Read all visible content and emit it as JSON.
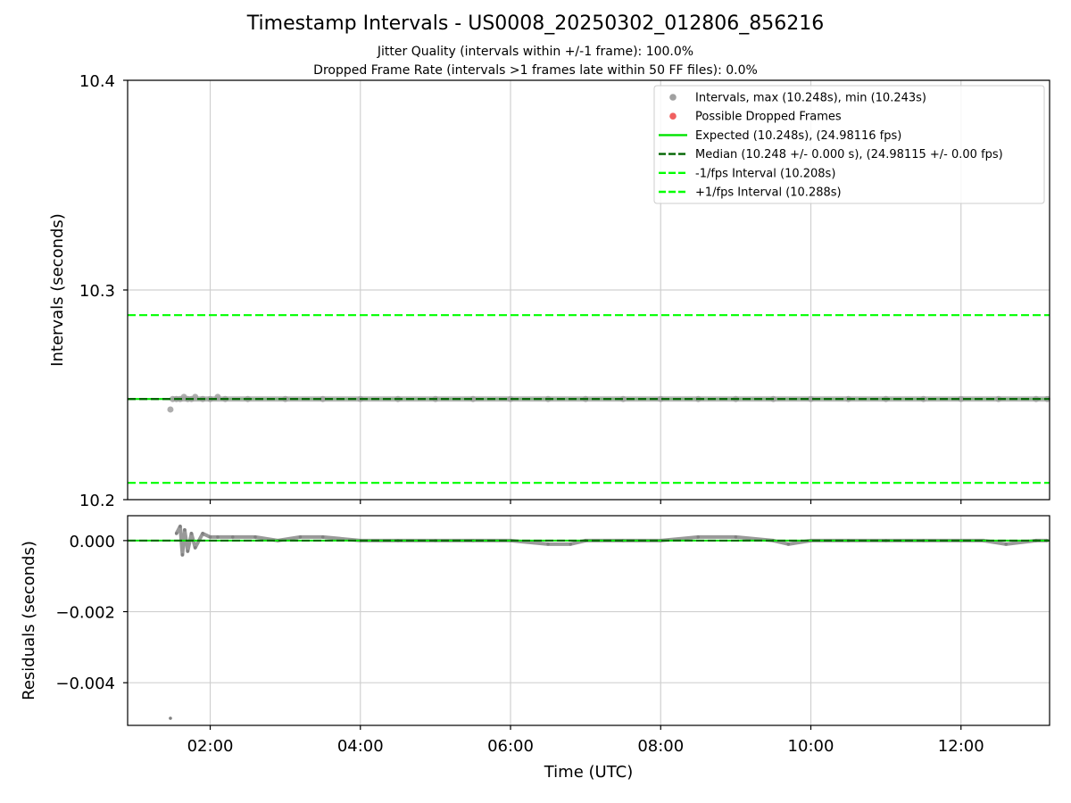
{
  "chart_data": [
    {
      "type": "scatter",
      "title": "Timestamp Intervals - US0008_20250302_012806_856216",
      "subtitle_lines": [
        "Jitter Quality (intervals within +/-1 frame): 100.0%",
        "Dropped Frame Rate (intervals >1 frames late within 50 FF files): 0.0%"
      ],
      "ylabel": "Intervals (seconds)",
      "ylim": [
        10.2,
        10.4
      ],
      "xlim_hours": [
        0.9,
        13.18
      ],
      "grid": true,
      "yticks": [
        10.2,
        10.3,
        10.4
      ],
      "ytick_labels": [
        "10.2",
        "10.3",
        "10.4"
      ],
      "legend_position": "upper right",
      "legend": [
        {
          "label": "Intervals, max (10.248s), min (10.243s)",
          "kind": "marker",
          "color": "#a0a0a0"
        },
        {
          "label": "Possible Dropped Frames",
          "kind": "marker",
          "color": "#f06060"
        },
        {
          "label": "Expected (10.248s), (24.98116 fps)",
          "kind": "line",
          "color": "#00e400",
          "dash": false
        },
        {
          "label": "Median (10.248 +/- 0.000 s), (24.98115 +/- 0.00 fps)",
          "kind": "line",
          "color": "#006400",
          "dash": true
        },
        {
          "label": "-1/fps Interval (10.208s)",
          "kind": "line",
          "color": "#00ff00",
          "dash": true
        },
        {
          "label": "+1/fps Interval (10.288s)",
          "kind": "line",
          "color": "#00ff00",
          "dash": true
        }
      ],
      "hlines": [
        {
          "name": "expected",
          "y": 10.248,
          "color": "#00e400",
          "dash": false
        },
        {
          "name": "median",
          "y": 10.248,
          "color": "#006400",
          "dash": true
        },
        {
          "name": "minus-one-frame",
          "y": 10.208,
          "color": "#00ff00",
          "dash": true
        },
        {
          "name": "plus-one-frame",
          "y": 10.288,
          "color": "#00ff00",
          "dash": true
        }
      ],
      "series": [
        {
          "name": "Intervals",
          "color": "#a0a0a0",
          "x_hours": [
            1.47,
            1.5,
            1.55,
            1.6,
            1.65,
            1.7,
            1.75,
            1.8,
            1.9,
            2.0,
            2.1,
            2.2,
            2.5,
            3.0,
            3.5,
            4.0,
            4.5,
            5.0,
            5.5,
            6.0,
            6.5,
            7.0,
            7.5,
            8.0,
            8.5,
            9.0,
            9.5,
            10.0,
            10.5,
            11.0,
            11.5,
            12.0,
            12.5,
            13.0,
            13.15
          ],
          "y": [
            10.243,
            10.248,
            10.248,
            10.248,
            10.249,
            10.248,
            10.248,
            10.249,
            10.248,
            10.248,
            10.249,
            10.248,
            10.248,
            10.248,
            10.248,
            10.248,
            10.248,
            10.248,
            10.248,
            10.248,
            10.248,
            10.248,
            10.248,
            10.248,
            10.248,
            10.248,
            10.248,
            10.248,
            10.248,
            10.248,
            10.248,
            10.248,
            10.248,
            10.248,
            10.248
          ]
        }
      ]
    },
    {
      "type": "scatter",
      "ylabel": "Residuals (seconds)",
      "xlabel": "Time (UTC)",
      "ylim": [
        -0.0052,
        0.0007
      ],
      "xlim_hours": [
        0.9,
        13.18
      ],
      "grid": true,
      "yticks": [
        0.0,
        -0.002,
        -0.004
      ],
      "ytick_labels": [
        "0.000",
        "−0.002",
        "−0.004"
      ],
      "xticks_hours": [
        2,
        4,
        6,
        8,
        10,
        12
      ],
      "xtick_labels": [
        "02:00",
        "04:00",
        "06:00",
        "08:00",
        "10:00",
        "12:00"
      ],
      "hlines": [
        {
          "name": "expected-residual",
          "y": 0.0,
          "color": "#00e400",
          "dash": false
        },
        {
          "name": "median-residual",
          "y": 0.0,
          "color": "#006400",
          "dash": true
        }
      ],
      "series": [
        {
          "name": "Residuals",
          "color": "#808080",
          "x_hours": [
            1.47,
            1.55,
            1.6,
            1.63,
            1.66,
            1.7,
            1.75,
            1.8,
            1.9,
            2.0,
            2.1,
            2.3,
            2.6,
            2.9,
            3.2,
            3.5,
            4.0,
            4.5,
            5.0,
            5.5,
            6.0,
            6.5,
            6.8,
            7.0,
            7.5,
            8.0,
            8.5,
            9.0,
            9.5,
            9.7,
            10.0,
            10.5,
            11.0,
            11.5,
            12.0,
            12.3,
            12.6,
            13.0,
            13.15
          ],
          "y": [
            -0.005,
            0.0002,
            0.0004,
            -0.0004,
            0.0003,
            -0.0003,
            0.0002,
            -0.0002,
            0.0002,
            0.0001,
            0.0001,
            0.0001,
            0.0001,
            0.0,
            0.0001,
            0.0001,
            0.0,
            0.0,
            0.0,
            0.0,
            0.0,
            -0.0001,
            -0.0001,
            0.0,
            0.0,
            0.0,
            0.0001,
            0.0001,
            0.0,
            -0.0001,
            0.0,
            0.0,
            0.0,
            0.0,
            0.0,
            0.0,
            -0.0001,
            0.0,
            0.0
          ]
        }
      ]
    }
  ]
}
